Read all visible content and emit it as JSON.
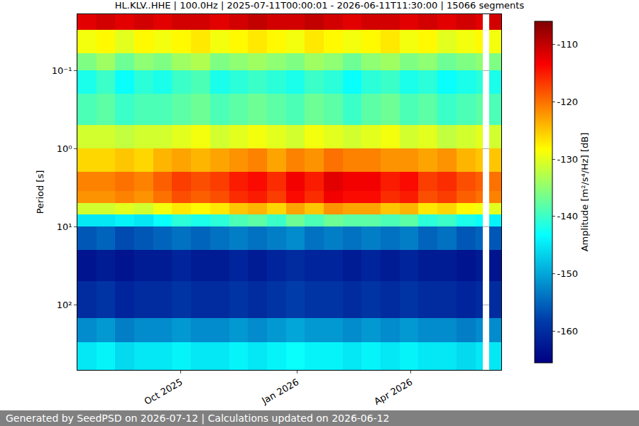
{
  "chart_data": {
    "type": "heatmap",
    "title": "HL.KLV..HHE | 100.0Hz | 2025-07-11T00:00:01 - 2026-06-11T11:30:00 | 15066 segments",
    "y_label": "Period [s]",
    "footer": "Generated by SeedPSD on 2026-07-12 | Calculations updated on 2026-06-12",
    "log": "y",
    "grid": true,
    "color": "Jet",
    "x": [
      "2025-07-11 00:00:01",
      "2025-07-26",
      "2025-08-10",
      "2025-08-25",
      "2025-09-09",
      "2025-09-24",
      "2025-10-09",
      "2025-10-24",
      "2025-11-08",
      "2025-11-23",
      "2025-12-08",
      "2025-12-23",
      "2026-01-07",
      "2026-01-22",
      "2026-02-06",
      "2026-02-21",
      "2026-03-08",
      "2026-03-23",
      "2026-04-07",
      "2026-04-22",
      "2026-05-07",
      "2026-05-22",
      "2026-05-28",
      "2026-06-02",
      "2026-06-11 11:30:00"
    ],
    "y": [
      0.019,
      0.03,
      0.06,
      0.1,
      0.2,
      0.5,
      1,
      2,
      3.5,
      5,
      7,
      10,
      20,
      50,
      150,
      300,
      686
    ],
    "z": [
      [
        -112,
        -111,
        -112,
        -111,
        -112,
        -111,
        -111,
        -112,
        -111,
        -110,
        -111,
        -111,
        -110,
        -111,
        -112,
        -111,
        -111,
        -112,
        -111,
        -112,
        -111,
        -112,
        null,
        -111
      ],
      [
        -129,
        -128,
        -130,
        -128,
        -129,
        -128,
        -127,
        -129,
        -128,
        -127,
        -128,
        -129,
        -127,
        -128,
        -129,
        -128,
        -127,
        -129,
        -128,
        -130,
        -129,
        -128,
        null,
        -129
      ],
      [
        -136,
        -134,
        -137,
        -135,
        -136,
        -134,
        -133,
        -136,
        -135,
        -134,
        -135,
        -136,
        -134,
        -135,
        -137,
        -135,
        -134,
        -136,
        -135,
        -137,
        -136,
        -135,
        null,
        -136
      ],
      [
        -142,
        -140,
        -143,
        -141,
        -142,
        -140,
        -139,
        -142,
        -141,
        -140,
        -141,
        -142,
        -140,
        -141,
        -143,
        -141,
        -140,
        -142,
        -141,
        -143,
        -142,
        -141,
        null,
        -142
      ],
      [
        -139,
        -138,
        -140,
        -139,
        -139,
        -138,
        -137,
        -139,
        -138,
        -137,
        -138,
        -139,
        -137,
        -138,
        -140,
        -138,
        -137,
        -139,
        -138,
        -140,
        -139,
        -138,
        null,
        -139
      ],
      [
        -131,
        -131,
        -132,
        -131,
        -131,
        -130,
        -129,
        -131,
        -130,
        -129,
        -130,
        -131,
        -129,
        -130,
        -131,
        -130,
        -129,
        -131,
        -130,
        -132,
        -131,
        -130,
        null,
        -131
      ],
      [
        -126,
        -126,
        -125,
        -126,
        -124,
        -123,
        -124,
        -123,
        -122,
        -121,
        -123,
        -121,
        -122,
        -120,
        -121,
        -121,
        -122,
        -122,
        -123,
        -122,
        -124,
        -125,
        null,
        -125
      ],
      [
        -121,
        -121,
        -120,
        -121,
        -119,
        -117,
        -118,
        -117,
        -115,
        -114,
        -116,
        -113,
        -115,
        -112,
        -113,
        -113,
        -115,
        -114,
        -117,
        -116,
        -118,
        -119,
        null,
        -120
      ],
      [
        -122,
        -122,
        -121,
        -122,
        -120,
        -118,
        -119,
        -118,
        -116,
        -115,
        -117,
        -114,
        -116,
        -113,
        -114,
        -114,
        -116,
        -115,
        -118,
        -117,
        -119,
        -120,
        null,
        -121
      ],
      [
        -131,
        -131,
        -130,
        -131,
        -129,
        -127,
        -128,
        -127,
        -125,
        -124,
        -126,
        -123,
        -125,
        -122,
        -123,
        -123,
        -125,
        -124,
        -127,
        -126,
        -128,
        -129,
        null,
        -130
      ],
      [
        -145,
        -145,
        -144,
        -145,
        -143,
        -141,
        -142,
        -141,
        -139,
        -138,
        -140,
        -137,
        -139,
        -137,
        -138,
        -138,
        -139,
        -138,
        -141,
        -140,
        -142,
        -143,
        null,
        -144
      ],
      [
        -156,
        -155,
        -157,
        -156,
        -155,
        -154,
        -155,
        -154,
        -153,
        -154,
        -153,
        -152,
        -154,
        -153,
        -154,
        -153,
        -154,
        -153,
        -155,
        -154,
        -156,
        -155,
        null,
        -156
      ],
      [
        -163,
        -162,
        -163,
        -162,
        -162,
        -161,
        -162,
        -162,
        -161,
        -162,
        -161,
        -160,
        -161,
        -161,
        -162,
        -161,
        -162,
        -161,
        -162,
        -162,
        -163,
        -162,
        null,
        -163
      ],
      [
        -160,
        -159,
        -161,
        -160,
        -160,
        -159,
        -160,
        -160,
        -159,
        -160,
        -159,
        -158,
        -159,
        -159,
        -160,
        -159,
        -160,
        -159,
        -160,
        -160,
        -161,
        -160,
        null,
        -160
      ],
      [
        -152,
        -151,
        -153,
        -152,
        -152,
        -151,
        -152,
        -152,
        -151,
        -152,
        -151,
        -150,
        -151,
        -151,
        -152,
        -151,
        -152,
        -151,
        -152,
        -152,
        -153,
        -152,
        null,
        -152
      ],
      [
        -145,
        -144,
        -146,
        -145,
        -145,
        -144,
        -145,
        -145,
        -144,
        -145,
        -144,
        -143,
        -144,
        -144,
        -145,
        -144,
        -145,
        -144,
        -145,
        -145,
        -146,
        -145,
        null,
        -145
      ]
    ],
    "xlim": [
      "2025-07-11 00:00:01",
      "2026-06-11 11:30:00"
    ],
    "xticks": [
      {
        "value": "2025-10-01",
        "label": "Oct 2025"
      },
      {
        "value": "2026-01-01",
        "label": "Jan 2026"
      },
      {
        "value": "2026-04-01",
        "label": "Apr 2026"
      }
    ],
    "ylim": [
      686,
      0.019
    ],
    "yticks": [
      {
        "value": 0.1,
        "label": "10⁻¹"
      },
      {
        "value": 1,
        "label": "10⁰"
      },
      {
        "value": 10,
        "label": "10¹"
      },
      {
        "value": 100,
        "label": "10²"
      }
    ],
    "colorbar": {
      "title": "Amplitude [m²/s⁴/Hz] [dB]",
      "range": [
        -165.5,
        -106
      ],
      "ticks": [
        -160,
        -150,
        -140,
        -130,
        -120,
        -110
      ]
    }
  }
}
